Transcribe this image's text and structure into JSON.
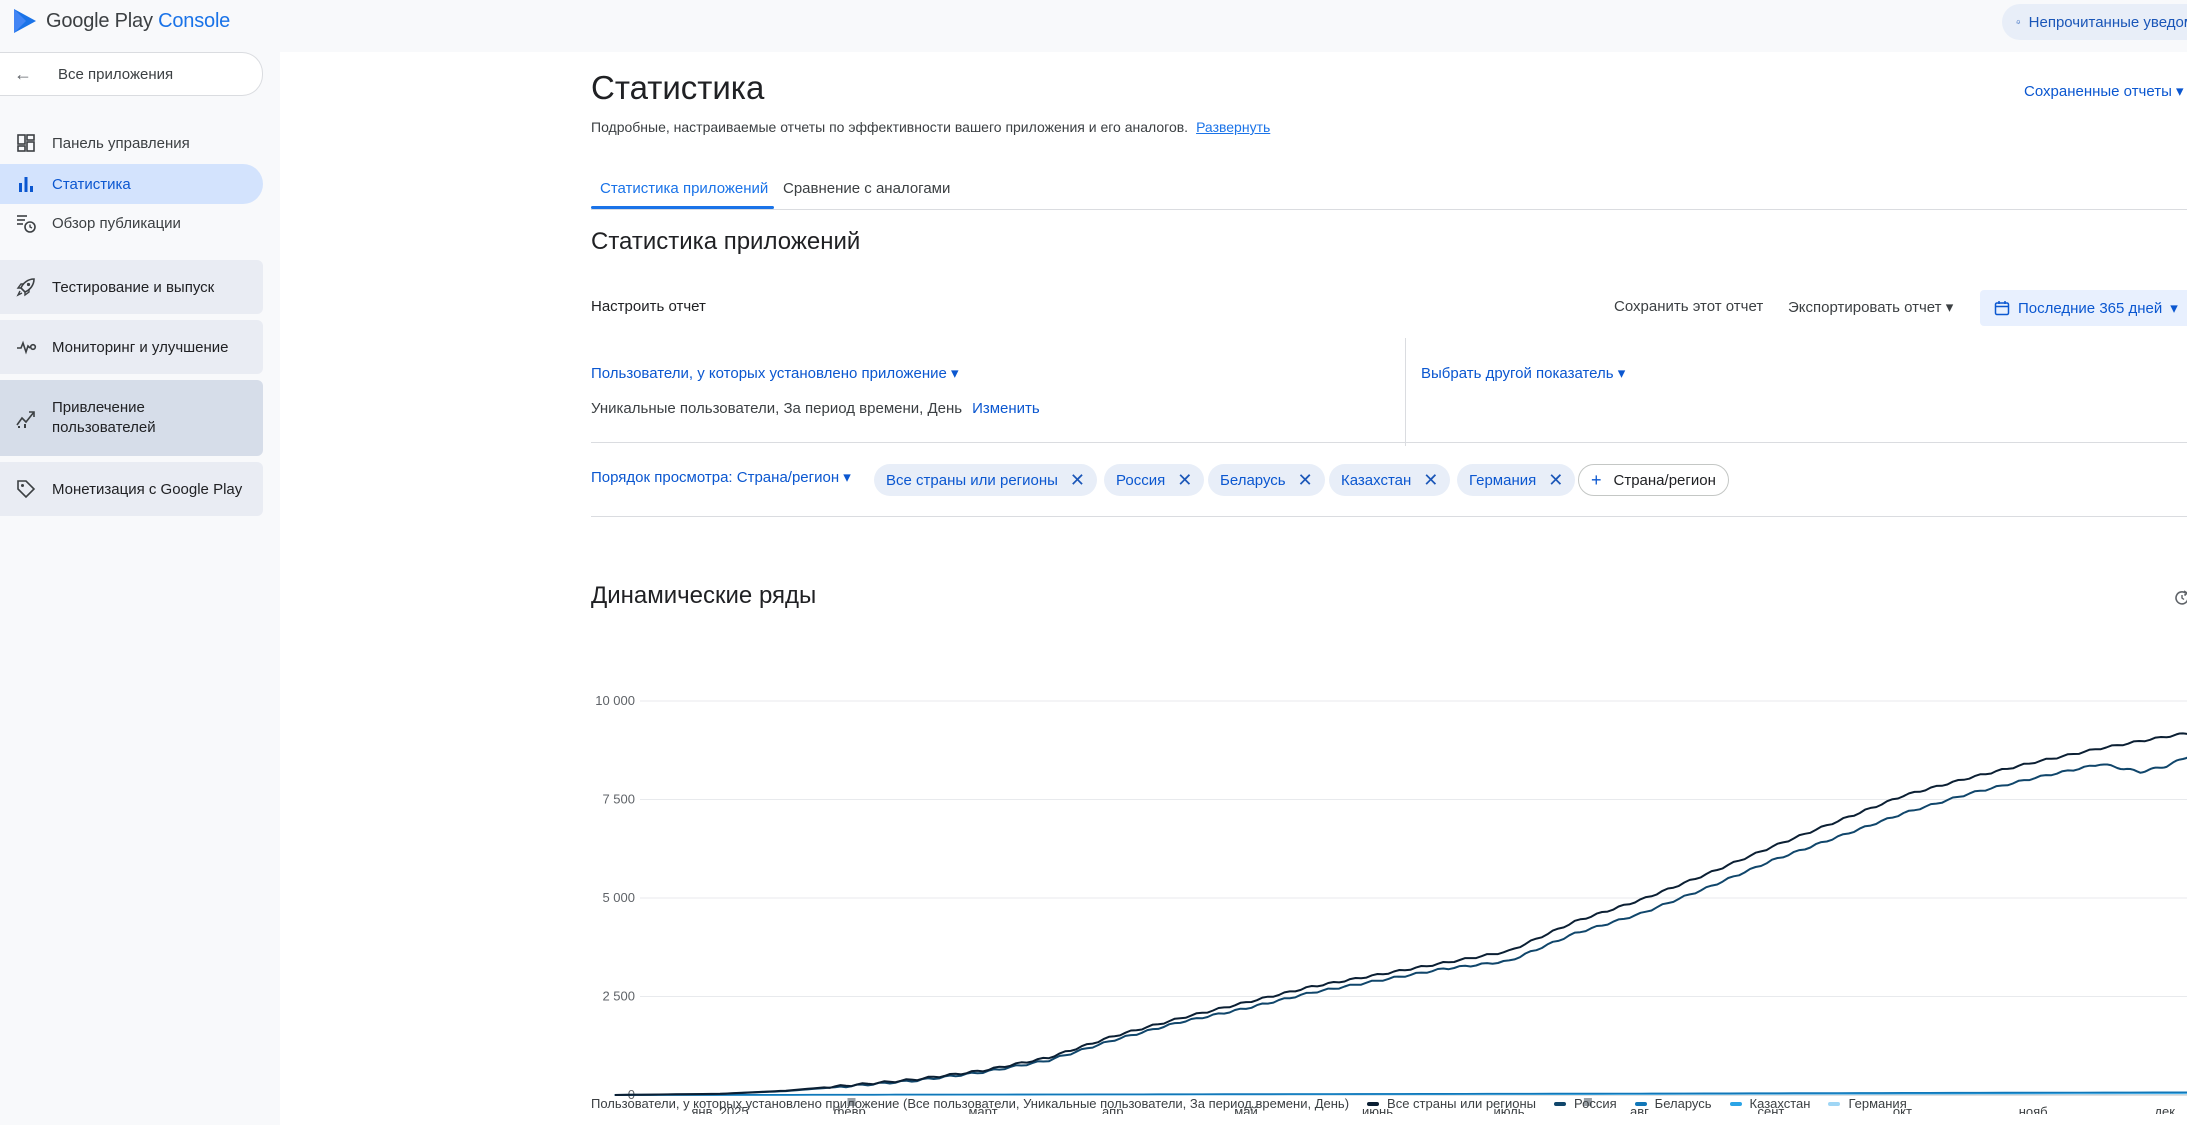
{
  "header": {
    "logo_google_play": "Google Play",
    "logo_console": "Console",
    "notifications": "Непрочитанные уведомления"
  },
  "sidebar": {
    "back": "Все приложения",
    "items": [
      {
        "label": "Панель управления",
        "icon": "dashboard-icon"
      },
      {
        "label": "Статистика",
        "icon": "bar-chart-icon",
        "active": true
      },
      {
        "label": "Обзор публикации",
        "icon": "publishing-overview-icon"
      }
    ],
    "groups": [
      {
        "label": "Тестирование и выпуск",
        "icon": "rocket-icon"
      },
      {
        "label": "Мониторинг и улучшение",
        "icon": "vitals-icon"
      },
      {
        "label_line1": "Привлечение",
        "label_line2": "пользователей",
        "icon": "growth-icon"
      },
      {
        "label": "Монетизация с Google Play",
        "icon": "tag-icon"
      }
    ]
  },
  "page": {
    "title": "Статистика",
    "saved_reports": "Сохраненные отчеты",
    "subtitle": "Подробные, настраиваемые отчеты по эффективности вашего приложения и его аналогов.",
    "expand_link": "Развернуть",
    "tabs": [
      "Статистика приложений",
      "Сравнение с аналогами"
    ],
    "section_title": "Статистика приложений",
    "configure_report": "Настроить отчет",
    "save_report": "Сохранить этот отчет",
    "export_report": "Экспортировать отчет",
    "date_range": "Последние 365 дней",
    "metric_primary": "Пользователи, у которых установлено приложение",
    "metric_secondary": "Выбрать другой показатель",
    "metric_description": "Уникальные пользователи, За период времени, День",
    "change_link": "Изменить",
    "order_by": "Порядок просмотра: Страна/регион",
    "chips": [
      "Все страны или регионы",
      "Россия",
      "Беларусь",
      "Казахстан",
      "Германия"
    ],
    "add_chip": "Страна/регион",
    "chart_title": "Динамические ряды",
    "legend_caption": "Пользователи, у которых установлено приложение (Все пользователи, Уникальные пользователи, За период времени, День)"
  },
  "colors": {
    "accent": "#0b57d0",
    "series_all": "#0b1f33",
    "series_russia": "#10466b",
    "series_belarus": "#1177b8",
    "series_kazakhstan": "#2ba4e6",
    "series_germany": "#9fd6f5"
  },
  "chart_data": {
    "type": "line",
    "title": "Динамические ряды",
    "ylim": [
      0,
      10000
    ],
    "yticks": [
      "10 000",
      "7 500",
      "5 000",
      "2 500",
      "0"
    ],
    "ytick_values": [
      10000,
      7500,
      5000,
      2500,
      0
    ],
    "x_tick_labels": [
      "янв. 2025",
      "февр.",
      "март",
      "апр.",
      "май",
      "июнь",
      "июль",
      "авг.",
      "сент.",
      "окт.",
      "нояб.",
      "дек."
    ],
    "x_tick_months": [
      1,
      2,
      3,
      4,
      5,
      6,
      7,
      8,
      9,
      10,
      11,
      12
    ],
    "x_start_month": 0.2,
    "x_end_month": 12.3,
    "legend": "bottom",
    "grid": true,
    "series": [
      {
        "name": "Все страны или регионы",
        "months": [
          0.2,
          1.0,
          1.5,
          2.0,
          2.5,
          3.0,
          3.5,
          4.0,
          4.5,
          5.0,
          5.5,
          6.0,
          6.5,
          7.0,
          7.5,
          8.0,
          8.5,
          9.0,
          9.5,
          10.0,
          10.5,
          11.0,
          11.5,
          12.0,
          12.3
        ],
        "values": [
          0,
          30,
          110,
          250,
          400,
          620,
          950,
          1500,
          1950,
          2350,
          2750,
          3050,
          3350,
          3650,
          4400,
          4950,
          5600,
          6300,
          6950,
          7600,
          8050,
          8450,
          8800,
          9100,
          9250
        ]
      },
      {
        "name": "Россия",
        "months": [
          0.2,
          1.0,
          1.5,
          2.0,
          2.5,
          3.0,
          3.5,
          4.0,
          4.5,
          5.0,
          5.5,
          6.0,
          6.5,
          7.0,
          7.5,
          8.0,
          8.5,
          9.0,
          9.5,
          10.0,
          10.5,
          11.0,
          11.5,
          11.8,
          12.0,
          12.3
        ],
        "values": [
          0,
          25,
          100,
          230,
          370,
          580,
          880,
          1400,
          1850,
          2200,
          2600,
          2900,
          3200,
          3400,
          4100,
          4600,
          5250,
          5950,
          6550,
          7150,
          7650,
          8050,
          8400,
          8200,
          8350,
          8800
        ]
      },
      {
        "name": "Беларусь",
        "months": [
          0.2,
          2.0,
          4.0,
          6.0,
          8.0,
          10.0,
          12.3
        ],
        "values": [
          0,
          8,
          18,
          28,
          38,
          55,
          70
        ]
      },
      {
        "name": "Казахстан",
        "months": [
          0.2,
          2.0,
          4.0,
          6.0,
          8.0,
          10.0,
          12.3
        ],
        "values": [
          0,
          5,
          14,
          22,
          30,
          42,
          55
        ]
      },
      {
        "name": "Германия",
        "months": [
          0.2,
          2.0,
          4.0,
          6.0,
          8.0,
          10.0,
          12.3
        ],
        "values": [
          0,
          3,
          8,
          15,
          22,
          30,
          40
        ]
      }
    ]
  }
}
